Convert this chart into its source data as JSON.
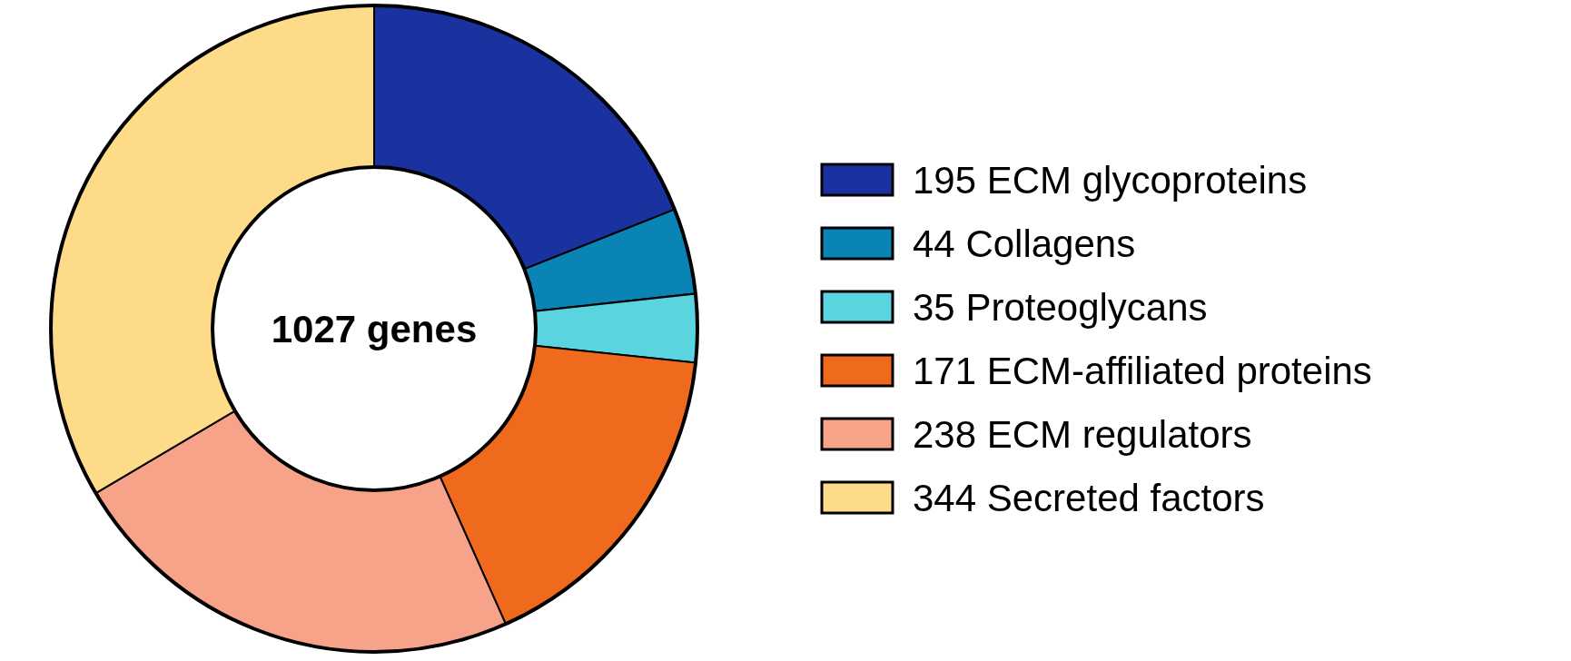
{
  "chart_data": {
    "type": "donut",
    "categories": [
      "195 ECM glycoproteins",
      "44 Collagens",
      "35 Proteoglycans",
      "171 ECM-affiliated proteins",
      "238 ECM regulators",
      "344 Secreted factors"
    ],
    "values": [
      195,
      44,
      35,
      171,
      238,
      344
    ],
    "colors": [
      "#1a32a0",
      "#0a84b5",
      "#5ad5e0",
      "#f06a1e",
      "#f7a38a",
      "#fddb88"
    ],
    "annotations": [
      "1027 genes"
    ],
    "legend": "right"
  }
}
